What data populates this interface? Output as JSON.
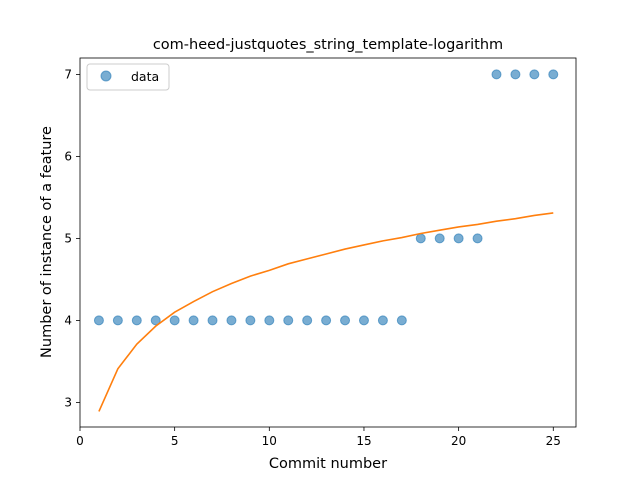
{
  "chart_data": {
    "type": "scatter",
    "title": "com-heed-justquotes_string_template-logarithm",
    "xlabel": "Commit number",
    "ylabel": "Number of instance of a feature",
    "xlim": [
      0,
      26.2
    ],
    "ylim": [
      2.7,
      7.2
    ],
    "xticks": [
      0,
      5,
      10,
      15,
      20,
      25
    ],
    "yticks": [
      3,
      4,
      5,
      6,
      7
    ],
    "grid": false,
    "legend": {
      "placement": "top-left",
      "entries": [
        "data"
      ]
    },
    "series": [
      {
        "name": "data",
        "kind": "scatter",
        "color": "#1f77b4",
        "x": [
          1,
          2,
          3,
          4,
          5,
          6,
          7,
          8,
          9,
          10,
          11,
          12,
          13,
          14,
          15,
          16,
          17,
          18,
          19,
          20,
          21,
          22,
          23,
          24,
          25
        ],
        "y": [
          4,
          4,
          4,
          4,
          4,
          4,
          4,
          4,
          4,
          4,
          4,
          4,
          4,
          4,
          4,
          4,
          4,
          5,
          5,
          5,
          5,
          7,
          7,
          7,
          7
        ]
      },
      {
        "kind": "line",
        "color": "#ff7f0e",
        "x": [
          1,
          2,
          3,
          4,
          5,
          6,
          7,
          8,
          9,
          10,
          11,
          12,
          13,
          14,
          15,
          16,
          17,
          18,
          19,
          20,
          21,
          22,
          23,
          24,
          25
        ],
        "y": [
          2.89,
          3.41,
          3.71,
          3.93,
          4.1,
          4.23,
          4.35,
          4.45,
          4.54,
          4.61,
          4.69,
          4.75,
          4.81,
          4.87,
          4.92,
          4.97,
          5.01,
          5.06,
          5.1,
          5.14,
          5.17,
          5.21,
          5.24,
          5.28,
          5.31
        ]
      }
    ]
  }
}
